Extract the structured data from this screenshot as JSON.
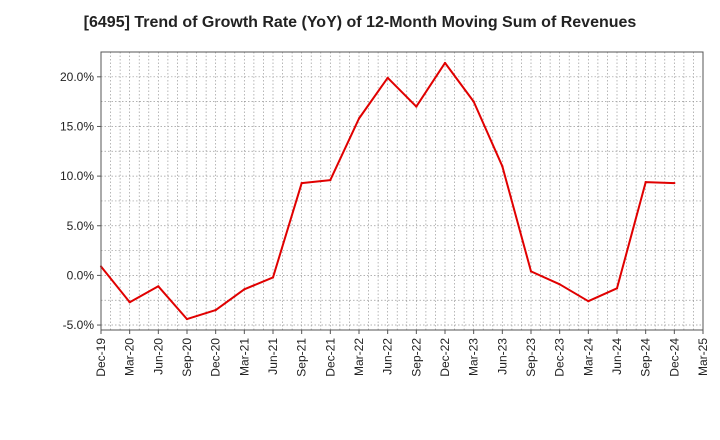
{
  "chart_data": {
    "type": "line",
    "title": "[6495]  Trend of Growth Rate (YoY) of 12-Month Moving Sum of Revenues",
    "xlabel": "",
    "ylabel": "",
    "x_ticks": [
      "Dec-19",
      "Mar-20",
      "Jun-20",
      "Sep-20",
      "Dec-20",
      "Mar-21",
      "Jun-21",
      "Sep-21",
      "Dec-21",
      "Mar-22",
      "Jun-22",
      "Sep-22",
      "Dec-22",
      "Mar-23",
      "Jun-23",
      "Sep-23",
      "Dec-23",
      "Mar-24",
      "Jun-24",
      "Sep-24",
      "Dec-24",
      "Mar-25"
    ],
    "y_ticks": [
      "20.0%",
      "15.0%",
      "10.0%",
      "5.0%",
      "0.0%",
      "-5.0%"
    ],
    "y_tick_values": [
      20,
      15,
      10,
      5,
      0,
      -5
    ],
    "ylim": [
      -5.5,
      22.5
    ],
    "grid": true,
    "series": [
      {
        "color": "#e00000",
        "x": [
          "Dec-19",
          "Mar-20",
          "Jun-20",
          "Sep-20",
          "Dec-20",
          "Mar-21",
          "Jun-21",
          "Sep-21",
          "Dec-21",
          "Mar-22",
          "Jun-22",
          "Sep-22",
          "Dec-22",
          "Mar-23",
          "Jun-23",
          "Sep-23",
          "Dec-23",
          "Mar-24",
          "Jun-24",
          "Sep-24",
          "Dec-24"
        ],
        "values": [
          0.9,
          -2.7,
          -1.1,
          -4.4,
          -3.5,
          -1.4,
          -0.2,
          9.3,
          9.6,
          15.8,
          19.9,
          17.0,
          21.4,
          17.5,
          11.0,
          0.4,
          -0.9,
          -2.6,
          -1.3,
          9.4,
          9.3
        ]
      }
    ]
  }
}
